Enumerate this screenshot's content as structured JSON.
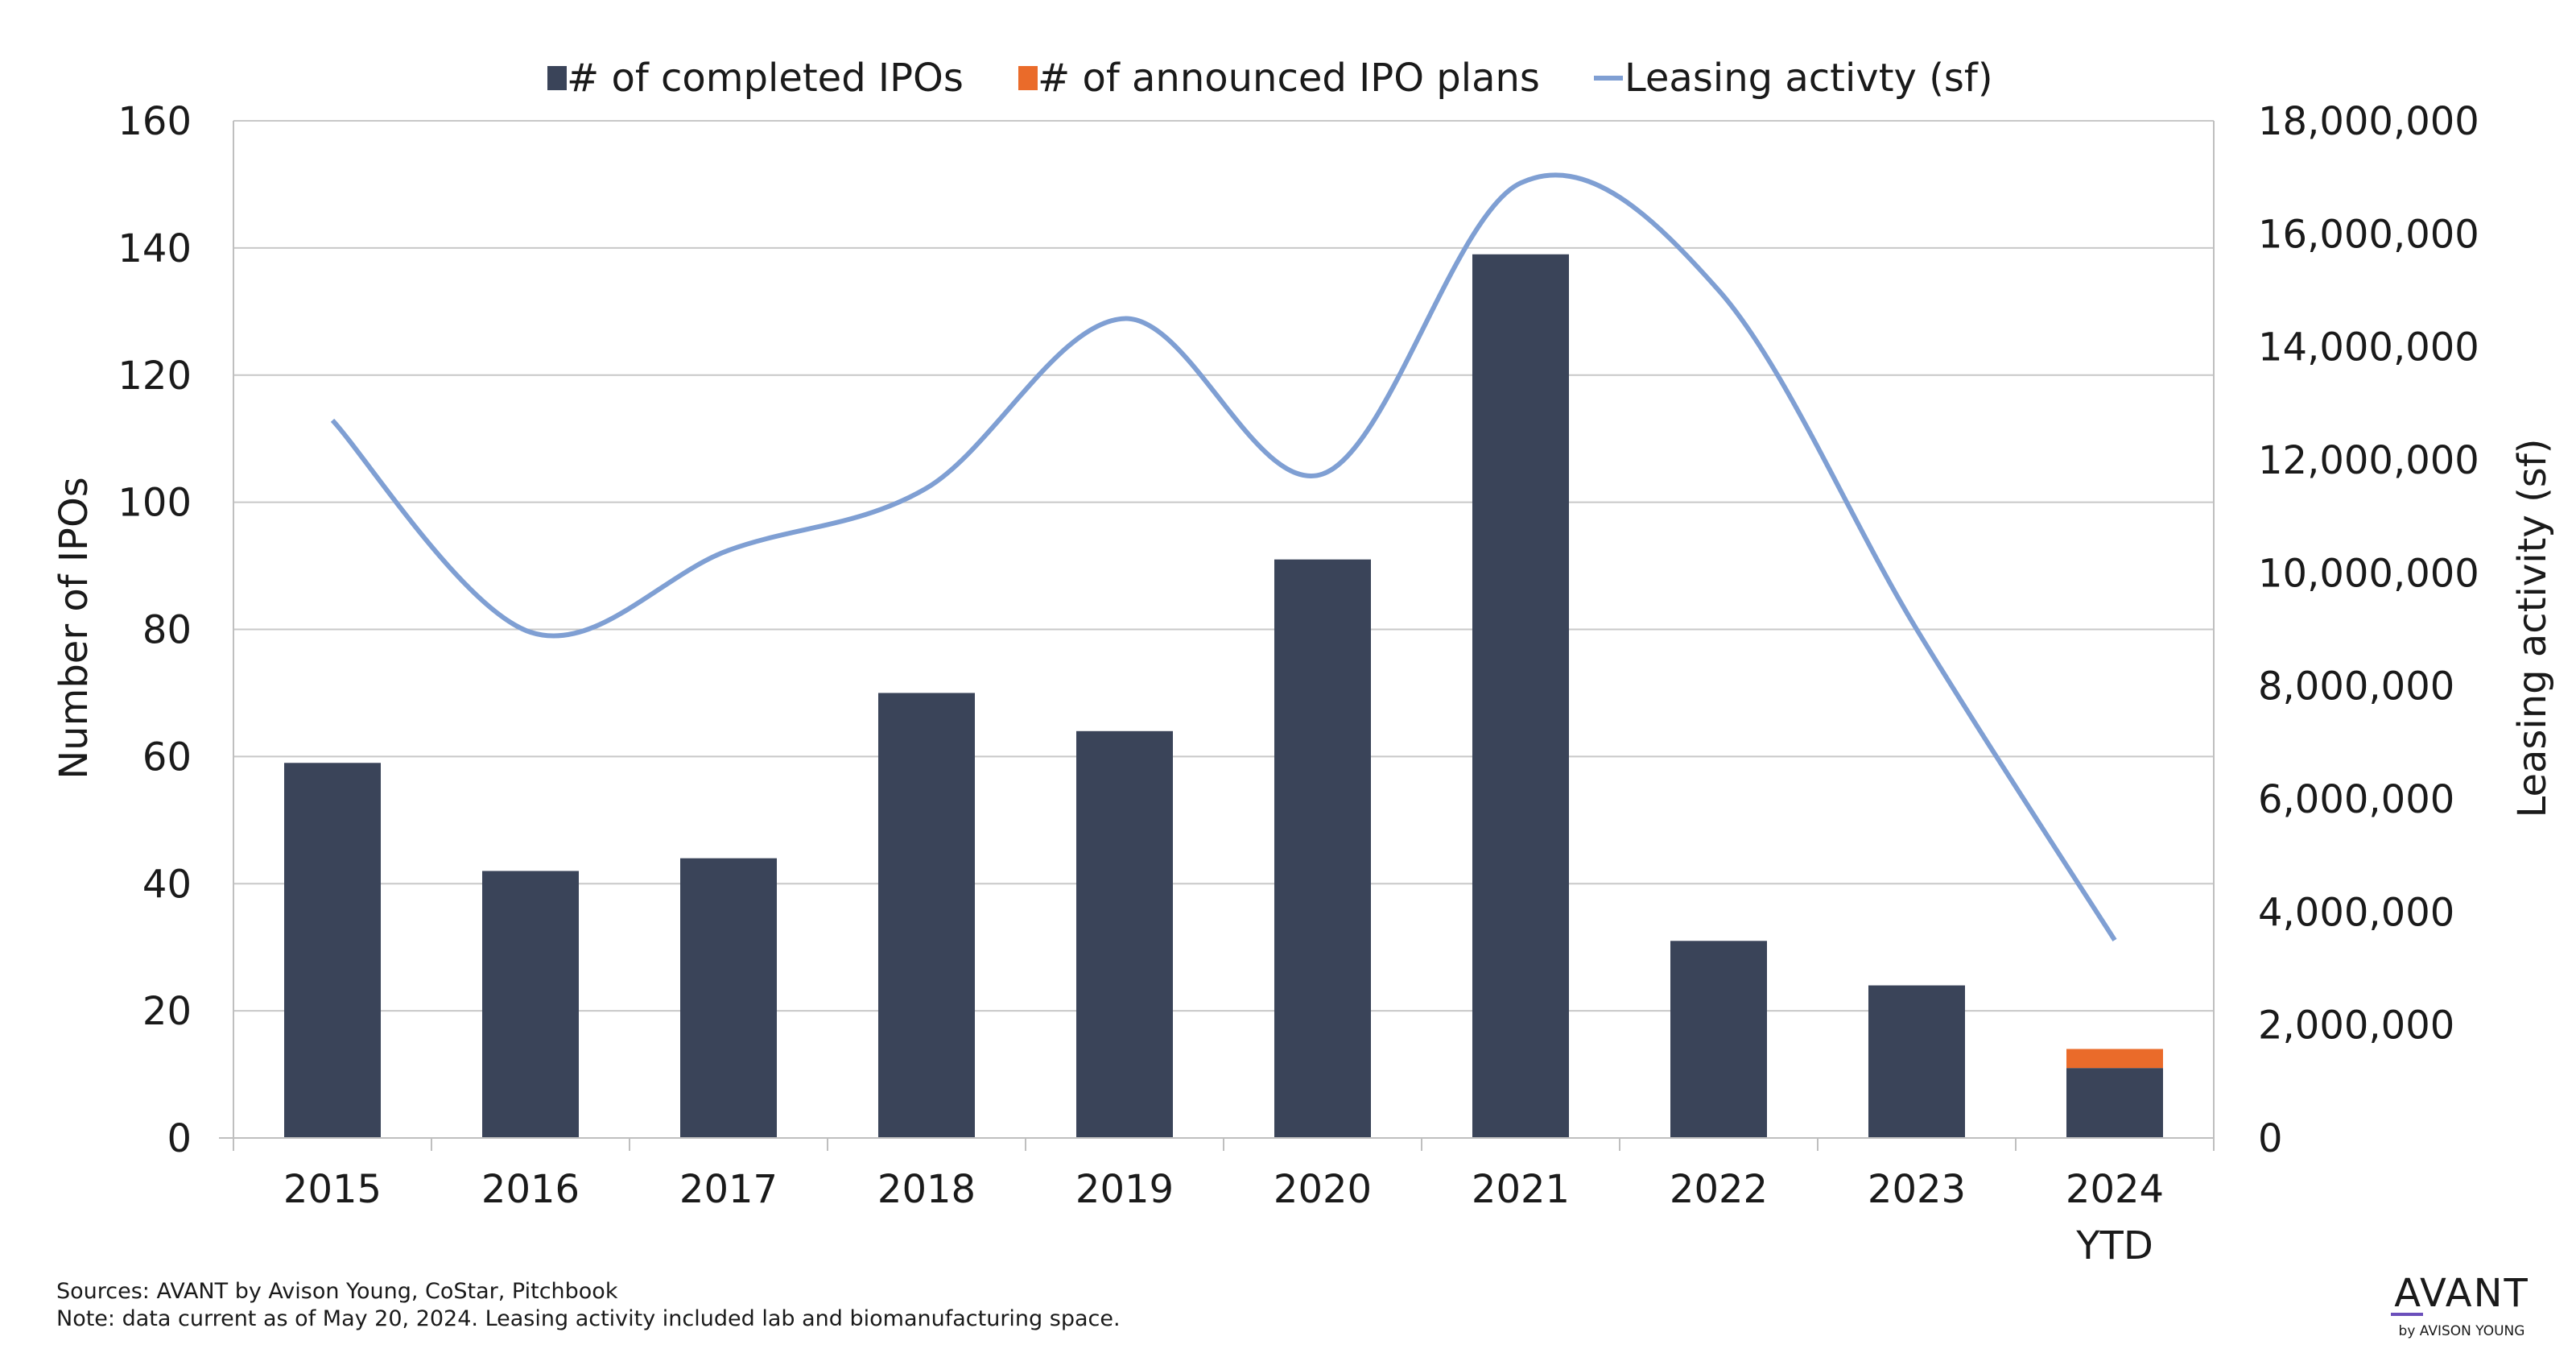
{
  "chart_data": {
    "type": "bar",
    "categories": [
      "2015",
      "2016",
      "2017",
      "2018",
      "2019",
      "2020",
      "2021",
      "2022",
      "2023",
      "2024\nYTD"
    ],
    "series": [
      {
        "name": "# of completed IPOs",
        "type": "bar",
        "axis": "left",
        "stacked": true,
        "color": "#3a4459",
        "values": [
          59,
          42,
          44,
          70,
          64,
          91,
          139,
          31,
          24,
          11
        ]
      },
      {
        "name": "# of announced IPO plans",
        "type": "bar",
        "axis": "left",
        "stacked": true,
        "color": "#ea6b2a",
        "values": [
          0,
          0,
          0,
          0,
          0,
          0,
          0,
          0,
          0,
          3
        ]
      },
      {
        "name": "Leasing activty (sf)",
        "type": "line",
        "axis": "right",
        "smooth": true,
        "color": "#7f9fd3",
        "values": [
          12700000,
          8950000,
          10400000,
          11500000,
          14500000,
          11750000,
          16900000,
          15000000,
          9000000,
          3500000
        ]
      }
    ],
    "ylabel": "Number of IPOs",
    "y2label": "Leasing activity (sf)",
    "ylim": [
      0,
      160
    ],
    "yticks": [
      "0",
      "20",
      "40",
      "60",
      "80",
      "100",
      "120",
      "140",
      "160"
    ],
    "y2lim": [
      0,
      18000000
    ],
    "y2ticks": [
      "0",
      "2,000,000",
      "4,000,000",
      "6,000,000",
      "8,000,000",
      "10,000,000",
      "12,000,000",
      "14,000,000",
      "16,000,000",
      "18,000,000"
    ],
    "grid": true,
    "legend": "top-center"
  },
  "footer": {
    "sources": "Sources: AVANT by Avison Young, CoStar, Pitchbook",
    "note": "Note: data current as of May 20, 2024. Leasing activity included lab and biomanufacturing space."
  },
  "logo": {
    "main": "AVANT",
    "sub": "by AVISON YOUNG",
    "color": "#1a1a1a",
    "accent": "#6b4fbb"
  }
}
